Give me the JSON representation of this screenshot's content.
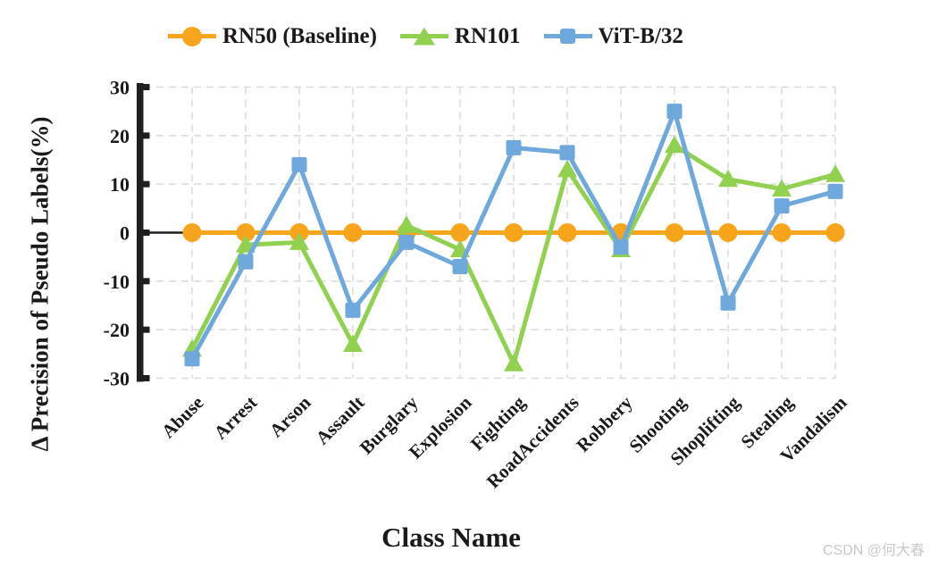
{
  "watermark": "CSDN @何大春",
  "chart_data": {
    "type": "line",
    "title": "",
    "xlabel": "Class Name",
    "ylabel": "Δ Precision of Pseudo Labels(%)",
    "ylim": [
      -30,
      30
    ],
    "yticks": [
      30,
      20,
      10,
      0,
      -10,
      -20,
      -30
    ],
    "grid": true,
    "legend_position": "top",
    "categories": [
      "Abuse",
      "Arrest",
      "Arson",
      "Assault",
      "Burglary",
      "Explosion",
      "Fighting",
      "RoadAccidents",
      "Robbery",
      "Shooting",
      "Shoplifting",
      "Stealing",
      "Vandalism"
    ],
    "series": [
      {
        "name": "RN50 (Baseline)",
        "color": "#F7A51B",
        "marker": "circle",
        "values": [
          0,
          0,
          0,
          0,
          0,
          0,
          0,
          0,
          0,
          0,
          0,
          0,
          0
        ]
      },
      {
        "name": "RN101",
        "color": "#92D050",
        "marker": "triangle",
        "values": [
          -24,
          -2.5,
          -2,
          -23,
          1.5,
          -3.5,
          -27,
          13,
          -3.5,
          18,
          11,
          9,
          12
        ]
      },
      {
        "name": "ViT-B/32",
        "color": "#6FA8DC",
        "marker": "square",
        "values": [
          -26,
          -6,
          14,
          -16,
          -2,
          -7,
          17.5,
          16.5,
          -3,
          25,
          -14.5,
          5.5,
          8.5
        ]
      }
    ],
    "colors": {
      "axis": "#1f1f1f",
      "grid": "#dadada",
      "text": "#1a1a1a"
    }
  }
}
